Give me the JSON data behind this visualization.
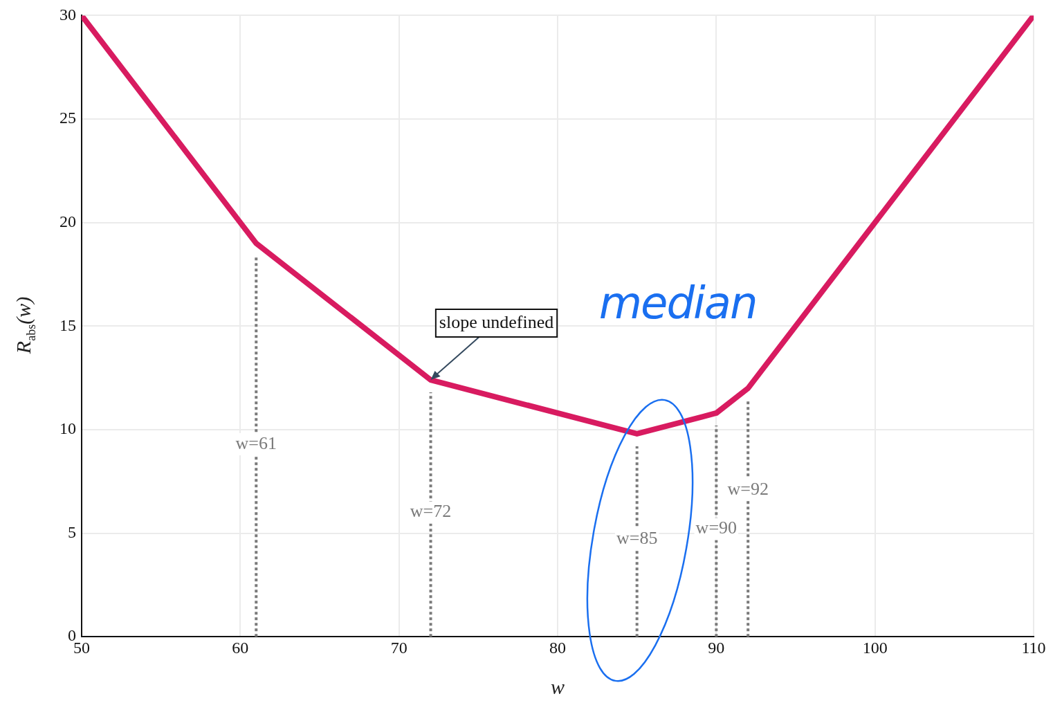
{
  "chart_data": {
    "type": "line",
    "xlabel": "w",
    "ylabel": "R$_{abs}$(w)",
    "x": [
      50,
      61,
      72,
      85,
      90,
      92,
      110
    ],
    "series": [
      {
        "color": "#d81b60",
        "values": [
          30,
          19,
          12.4,
          9.8,
          10.8,
          12,
          30
        ]
      }
    ],
    "xlim": [
      50,
      110
    ],
    "xticks": [
      50,
      60,
      70,
      80,
      90,
      100,
      110
    ],
    "ylim": [
      0,
      30
    ],
    "yticks": [
      0,
      5,
      10,
      15,
      20,
      25,
      30
    ],
    "grid": true,
    "legend": false,
    "marker": "none",
    "line_style": "solid",
    "ref_lines": [
      {
        "axis": "x",
        "value": 61,
        "color": "#7a7a7a",
        "line_style": "dotted"
      },
      {
        "axis": "x",
        "value": 72,
        "color": "#7a7a7a",
        "line_style": "dotted"
      },
      {
        "axis": "x",
        "value": 85,
        "color": "#7a7a7a",
        "line_style": "dotted"
      },
      {
        "axis": "x",
        "value": 90,
        "color": "#7a7a7a",
        "line_style": "dotted"
      },
      {
        "axis": "x",
        "value": 92,
        "color": "#7a7a7a",
        "line_style": "dotted"
      }
    ],
    "annotations": [
      {
        "text": "w=61",
        "x": 61,
        "y": 9.3
      },
      {
        "text": "w=72",
        "x": 72,
        "y": 6
      },
      {
        "text": "w=85",
        "x": 85,
        "y": 4.7
      },
      {
        "text": "w=90",
        "x": 90,
        "y": 5.2
      },
      {
        "text": "w=92",
        "x": 92,
        "y": 7.1
      },
      {
        "text": "slope undefined",
        "x": 72,
        "y": 12.4
      },
      "median"
    ]
  }
}
